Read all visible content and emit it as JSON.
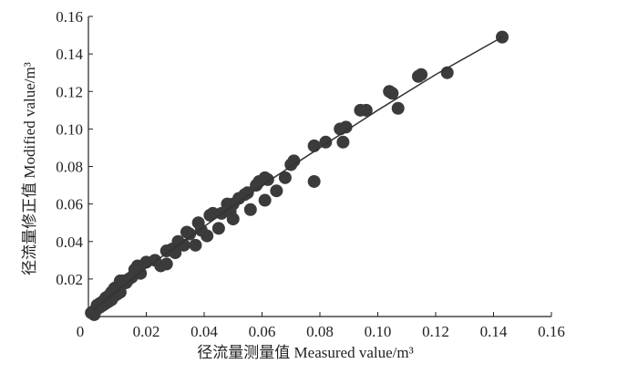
{
  "chart_data": {
    "type": "scatter",
    "xlabel": "径流量测量值 Measured value/m³",
    "ylabel": "径流量修正值 Modified value/m³",
    "color": "#3b3b3b",
    "xlim": [
      0,
      0.16
    ],
    "ylim": [
      0,
      0.16
    ],
    "xticks": [
      0,
      0.02,
      0.04,
      0.06,
      0.08,
      {
        "value": 0.1,
        "label": "0.10"
      },
      0.12,
      0.14,
      0.16
    ],
    "yticks": [
      0.02,
      0.04,
      0.06,
      0.08,
      {
        "value": 0.1,
        "label": "0.10"
      },
      0.12,
      0.14,
      0.16
    ],
    "x": [
      0.143,
      0.124,
      0.115,
      0.114,
      0.107,
      0.105,
      0.104,
      0.096,
      0.094,
      0.089,
      0.088,
      0.087,
      0.082,
      0.078,
      0.078,
      0.071,
      0.07,
      0.068,
      0.065,
      0.062,
      0.061,
      0.061,
      0.059,
      0.058,
      0.056,
      0.055,
      0.054,
      0.052,
      0.05,
      0.05,
      0.049,
      0.048,
      0.046,
      0.045,
      0.043,
      0.042,
      0.041,
      0.039,
      0.038,
      0.037,
      0.035,
      0.034,
      0.033,
      0.031,
      0.03,
      0.029,
      0.027,
      0.027,
      0.025,
      0.023,
      0.02,
      0.018,
      0.017,
      0.016,
      0.015,
      0.014,
      0.013,
      0.012,
      0.011,
      0.011,
      0.01,
      0.01,
      0.009,
      0.009,
      0.008,
      0.008,
      0.007,
      0.007,
      0.006,
      0.006,
      0.005,
      0.005,
      0.004,
      0.004,
      0.003,
      0.003,
      0.002,
      0.002,
      0.001
    ],
    "values": [
      0.149,
      0.13,
      0.129,
      0.128,
      0.111,
      0.119,
      0.12,
      0.11,
      0.11,
      0.101,
      0.093,
      0.1,
      0.093,
      0.091,
      0.072,
      0.083,
      0.081,
      0.074,
      0.067,
      0.073,
      0.074,
      0.062,
      0.072,
      0.07,
      0.057,
      0.066,
      0.065,
      0.063,
      0.06,
      0.052,
      0.056,
      0.06,
      0.055,
      0.047,
      0.055,
      0.054,
      0.043,
      0.046,
      0.05,
      0.038,
      0.044,
      0.045,
      0.038,
      0.04,
      0.034,
      0.036,
      0.035,
      0.028,
      0.027,
      0.03,
      0.029,
      0.023,
      0.027,
      0.025,
      0.021,
      0.02,
      0.018,
      0.019,
      0.019,
      0.013,
      0.016,
      0.012,
      0.015,
      0.011,
      0.013,
      0.009,
      0.011,
      0.008,
      0.01,
      0.007,
      0.008,
      0.006,
      0.007,
      0.005,
      0.006,
      0.004,
      0.003,
      0.001,
      0.002
    ],
    "fit_line": {
      "x": [
        0.002,
        0.02,
        0.04,
        0.06,
        0.08,
        0.1,
        0.12,
        0.143
      ],
      "y": [
        0.004,
        0.026,
        0.048,
        0.07,
        0.09,
        0.11,
        0.129,
        0.149
      ]
    }
  }
}
